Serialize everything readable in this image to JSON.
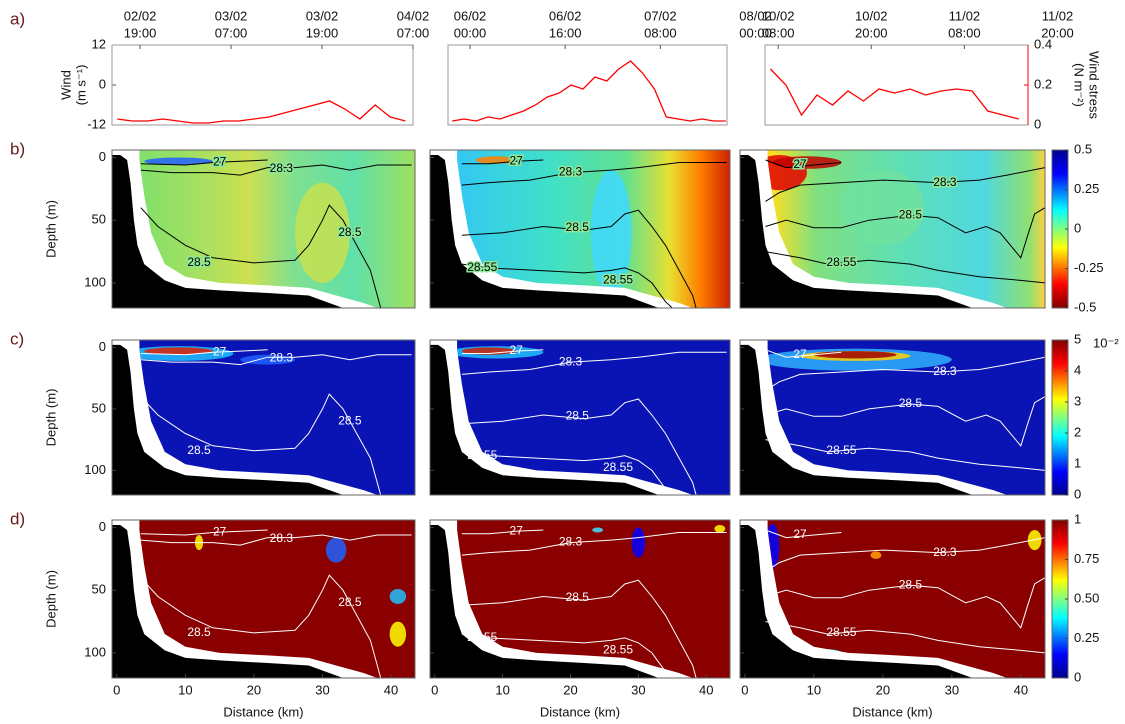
{
  "chart_data": [
    {
      "type": "line",
      "panel_label": "a)",
      "ylabel": "Wind (m s⁻¹)",
      "y2label": "Wind stress (N m⁻²)",
      "ylim": [
        -12,
        12
      ],
      "yticks": [
        -12,
        0,
        12
      ],
      "y2lim": [
        0,
        0.4
      ],
      "y2ticks": [
        0,
        0.2,
        0.4
      ],
      "color": "#ff0000",
      "columns": [
        {
          "xlim": [
            -3.7,
            36
          ],
          "xticks": [
            {
              "value": 0,
              "label": "02/02 19:00"
            },
            {
              "value": 12,
              "label": "03/02 07:00"
            },
            {
              "value": 24,
              "label": "03/02 19:00"
            },
            {
              "value": 36,
              "label": "04/02 07:00"
            }
          ],
          "axis": "y2",
          "x": [
            -3,
            -1,
            1,
            3,
            5,
            7,
            9,
            11,
            13,
            15,
            17,
            19,
            21,
            23,
            25,
            27,
            29,
            31,
            33,
            35
          ],
          "values": [
            0.03,
            0.02,
            0.02,
            0.03,
            0.02,
            0.01,
            0.01,
            0.02,
            0.02,
            0.03,
            0.04,
            0.06,
            0.08,
            0.1,
            0.12,
            0.08,
            0.03,
            0.1,
            0.04,
            0.02
          ]
        },
        {
          "xlim": [
            -3.7,
            43.2
          ],
          "xticks": [
            {
              "value": 0,
              "label": "06/02 00:00"
            },
            {
              "value": 16,
              "label": "06/02 16:00"
            },
            {
              "value": 32,
              "label": "07/02 08:00"
            },
            {
              "value": 48,
              "label": "08/02 00:00"
            }
          ],
          "axis": "y2",
          "x": [
            -3,
            -1,
            1,
            3,
            5,
            7,
            9,
            11,
            13,
            15,
            17,
            19,
            21,
            23,
            25,
            27,
            29,
            31,
            33,
            35,
            37,
            39,
            41,
            43
          ],
          "values": [
            0.02,
            0.03,
            0.02,
            0.04,
            0.03,
            0.05,
            0.07,
            0.1,
            0.14,
            0.16,
            0.2,
            0.18,
            0.24,
            0.22,
            0.28,
            0.32,
            0.26,
            0.18,
            0.04,
            0.03,
            0.02,
            0.03,
            0.02,
            0.02
          ]
        },
        {
          "xlim": [
            -1.7,
            32.2
          ],
          "xticks": [
            {
              "value": 0,
              "label": "10/02 08:00"
            },
            {
              "value": 12,
              "label": "10/02 20:00"
            },
            {
              "value": 24,
              "label": "11/02 08:00"
            },
            {
              "value": 36,
              "label": "11/02 20:00"
            }
          ],
          "axis": "y2",
          "x": [
            -1,
            1,
            3,
            5,
            7,
            9,
            11,
            13,
            15,
            17,
            19,
            21,
            23,
            25,
            27,
            29,
            31
          ],
          "values": [
            0.28,
            0.2,
            0.05,
            0.15,
            0.1,
            0.17,
            0.12,
            0.18,
            0.16,
            0.18,
            0.15,
            0.17,
            0.18,
            0.17,
            0.07,
            0.05,
            0.03
          ]
        }
      ]
    },
    {
      "type": "heatmap",
      "panel_label": "b)",
      "ylabel": "Depth (m)",
      "xlim": [
        -0.7,
        43.5
      ],
      "ylim": [
        -6,
        120
      ],
      "yticks": [
        0,
        50,
        100
      ],
      "clim": [
        -0.5,
        0.5
      ],
      "colorbar_ticks": [
        -0.5,
        -0.25,
        0,
        0.25,
        0.5
      ],
      "contour_color": "#000000",
      "contour_labels": [
        [
          "27",
          "28.3",
          "28.5",
          "28.5"
        ],
        [
          "27",
          "28.3",
          "28.5",
          "28.55",
          "28.55"
        ],
        [
          "27",
          "28.3",
          "28.5",
          "28.55"
        ]
      ]
    },
    {
      "type": "heatmap",
      "panel_label": "c)",
      "ylabel": "Depth (m)",
      "xlim": [
        -0.7,
        43.5
      ],
      "ylim": [
        -6,
        120
      ],
      "yticks": [
        0,
        50,
        100
      ],
      "clim": [
        0,
        5
      ],
      "colorbar_ticks": [
        0,
        1,
        2,
        3,
        4,
        5
      ],
      "colorbar_exponent": "10⁻²",
      "contour_color": "#ffffff",
      "contour_labels": [
        [
          "27",
          "28.3",
          "28.5",
          "28.5"
        ],
        [
          "27",
          "28.3",
          "28.5",
          "28.55",
          "28.55"
        ],
        [
          "27",
          "28.3",
          "28.5",
          "28.55"
        ]
      ]
    },
    {
      "type": "heatmap",
      "panel_label": "d)",
      "ylabel": "Depth (m)",
      "xlabel": "Distance (km)",
      "xlim": [
        -0.7,
        43.5
      ],
      "ylim": [
        -6,
        120
      ],
      "yticks": [
        0,
        50,
        100
      ],
      "xticks": [
        0,
        10,
        20,
        30,
        40
      ],
      "clim": [
        0,
        1
      ],
      "colorbar_ticks": [
        0,
        0.25,
        {
          "value": 0.5,
          "label": "0.50"
        },
        0.75,
        1
      ],
      "contour_color": "#ffffff",
      "contour_labels": [
        [
          "27",
          "28.3",
          "28.5",
          "28.5"
        ],
        [
          "27",
          "28.3",
          "28.5",
          "28.55",
          "28.55"
        ],
        [
          "27",
          "28.3",
          "28.5",
          "28.55"
        ]
      ]
    }
  ]
}
